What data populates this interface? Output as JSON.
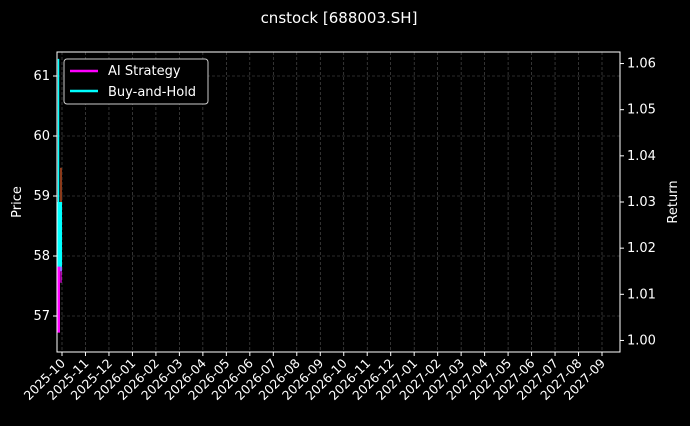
{
  "chart_data": {
    "type": "line",
    "title": "cnstock [688003.SH]",
    "ylabel": "Price",
    "y2label": "Return",
    "ylim": [
      56.4,
      61.4
    ],
    "y2lim": [
      0.9975,
      1.0625
    ],
    "yticks": [
      57,
      58,
      59,
      60,
      61
    ],
    "y2ticks": [
      "1.00",
      "1.01",
      "1.02",
      "1.03",
      "1.04",
      "1.05",
      "1.06"
    ],
    "xticks": [
      "2025-10",
      "2025-11",
      "2025-12",
      "2026-01",
      "2026-02",
      "2026-03",
      "2026-04",
      "2026-05",
      "2026-06",
      "2026-07",
      "2026-08",
      "2026-09",
      "2026-10",
      "2026-11",
      "2026-12",
      "2027-01",
      "2027-02",
      "2027-03",
      "2027-04",
      "2027-05",
      "2027-06",
      "2027-07",
      "2027-08",
      "2027-09"
    ],
    "grid": true,
    "legend": "top-left",
    "price_candle": {
      "open": 59.47,
      "close": 58.83,
      "color": "#8b3a1a"
    },
    "series": [
      {
        "name": "AI Strategy",
        "color": "#ff00ff",
        "axis": "right",
        "values": [
          1.0017,
          1.016,
          1.0125
        ]
      },
      {
        "name": "Buy-and-Hold",
        "color": "#00ffff",
        "axis": "right",
        "values": [
          1.0085,
          1.061,
          1.015,
          1.03
        ]
      }
    ]
  }
}
